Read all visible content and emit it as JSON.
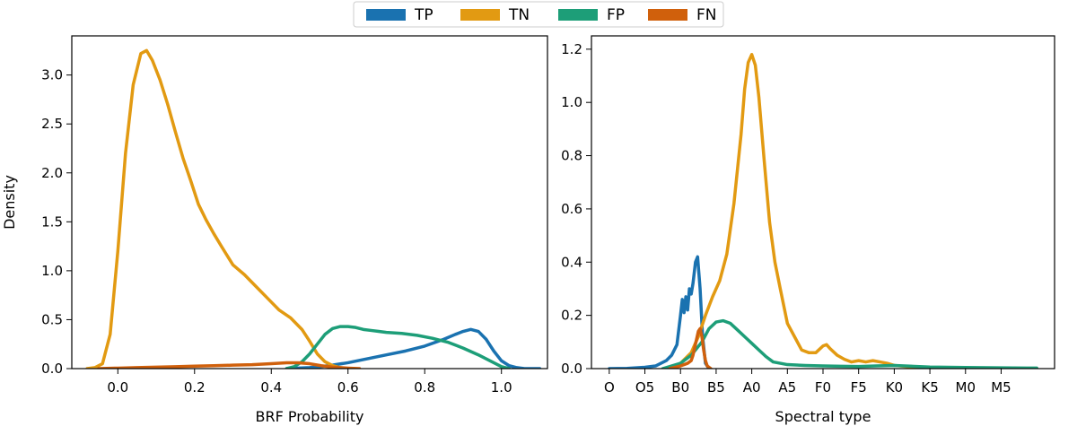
{
  "chart_data": {
    "legend": {
      "placement": "top-center",
      "entries": [
        {
          "name": "TP",
          "color": "#1a72b0"
        },
        {
          "name": "TN",
          "color": "#e29a12"
        },
        {
          "name": "FP",
          "color": "#1d9e78"
        },
        {
          "name": "FN",
          "color": "#d0600c"
        }
      ]
    },
    "panels": [
      {
        "type": "line",
        "title": "",
        "xlabel": "BRF Probability",
        "ylabel": "Density",
        "xlim": [
          -0.12,
          1.12
        ],
        "ylim": [
          0,
          3.4
        ],
        "xticks": [
          0.0,
          0.2,
          0.4,
          0.6,
          0.8,
          1.0
        ],
        "xtick_labels": [
          "0.0",
          "0.2",
          "0.4",
          "0.6",
          "0.8",
          "1.0"
        ],
        "yticks": [
          0.0,
          0.5,
          1.0,
          1.5,
          2.0,
          2.5,
          3.0
        ],
        "ytick_labels": [
          "0.0",
          "0.5",
          "1.0",
          "1.5",
          "2.0",
          "2.5",
          "3.0"
        ],
        "series": [
          {
            "name": "TP",
            "color": "#1a72b0",
            "x": [
              0.44,
              0.5,
              0.55,
              0.6,
              0.65,
              0.7,
              0.75,
              0.8,
              0.85,
              0.88,
              0.9,
              0.92,
              0.94,
              0.96,
              0.98,
              1.0,
              1.02,
              1.04,
              1.06,
              1.08,
              1.1
            ],
            "y": [
              0.0,
              0.01,
              0.03,
              0.06,
              0.1,
              0.14,
              0.18,
              0.23,
              0.3,
              0.35,
              0.38,
              0.4,
              0.38,
              0.3,
              0.18,
              0.08,
              0.03,
              0.01,
              0.0,
              0.0,
              0.0
            ]
          },
          {
            "name": "TN",
            "color": "#e29a12",
            "x": [
              -0.08,
              -0.06,
              -0.04,
              -0.02,
              0.0,
              0.02,
              0.04,
              0.06,
              0.075,
              0.09,
              0.11,
              0.13,
              0.15,
              0.17,
              0.19,
              0.21,
              0.23,
              0.25,
              0.27,
              0.3,
              0.33,
              0.36,
              0.39,
              0.42,
              0.45,
              0.48,
              0.5,
              0.52,
              0.54,
              0.56,
              0.58,
              0.6
            ],
            "y": [
              0.0,
              0.01,
              0.05,
              0.35,
              1.2,
              2.2,
              2.9,
              3.22,
              3.25,
              3.15,
              2.95,
              2.7,
              2.42,
              2.15,
              1.92,
              1.68,
              1.52,
              1.38,
              1.25,
              1.06,
              0.96,
              0.84,
              0.72,
              0.6,
              0.52,
              0.4,
              0.28,
              0.15,
              0.07,
              0.03,
              0.01,
              0.0
            ]
          },
          {
            "name": "FP",
            "color": "#1d9e78",
            "x": [
              0.44,
              0.46,
              0.48,
              0.5,
              0.52,
              0.54,
              0.56,
              0.58,
              0.6,
              0.62,
              0.64,
              0.66,
              0.68,
              0.7,
              0.74,
              0.78,
              0.82,
              0.86,
              0.9,
              0.94,
              0.98,
              1.0,
              1.02
            ],
            "y": [
              0.0,
              0.02,
              0.07,
              0.15,
              0.25,
              0.35,
              0.41,
              0.43,
              0.43,
              0.42,
              0.4,
              0.39,
              0.38,
              0.37,
              0.36,
              0.34,
              0.31,
              0.27,
              0.21,
              0.14,
              0.06,
              0.02,
              0.0
            ]
          },
          {
            "name": "FN",
            "color": "#d0600c",
            "x": [
              -0.05,
              0.0,
              0.05,
              0.1,
              0.15,
              0.2,
              0.25,
              0.3,
              0.35,
              0.4,
              0.44,
              0.47,
              0.5,
              0.53,
              0.56,
              0.6,
              0.63
            ],
            "y": [
              0.0,
              0.005,
              0.01,
              0.015,
              0.02,
              0.025,
              0.03,
              0.035,
              0.04,
              0.05,
              0.06,
              0.06,
              0.05,
              0.03,
              0.015,
              0.005,
              0.0
            ]
          }
        ]
      },
      {
        "type": "line",
        "title": "",
        "xlabel": "Spectral type",
        "ylabel": "",
        "xlim": [
          -0.5,
          12.5
        ],
        "ylim": [
          0,
          1.25
        ],
        "xticks": [
          0,
          1,
          2,
          3,
          4,
          5,
          6,
          7,
          8,
          9,
          10,
          11
        ],
        "xtick_labels": [
          "O",
          "O5",
          "B0",
          "B5",
          "A0",
          "A5",
          "F0",
          "F5",
          "K0",
          "K5",
          "M0",
          "M5"
        ],
        "yticks": [
          0.0,
          0.2,
          0.4,
          0.6,
          0.8,
          1.0,
          1.2
        ],
        "ytick_labels": [
          "0.0",
          "0.2",
          "0.4",
          "0.6",
          "0.8",
          "1.0",
          "1.2"
        ],
        "series": [
          {
            "name": "TP",
            "color": "#1a72b0",
            "x": [
              0.0,
              0.5,
              1.0,
              1.3,
              1.6,
              1.75,
              1.9,
              2.0,
              2.05,
              2.1,
              2.15,
              2.2,
              2.25,
              2.3,
              2.35,
              2.42,
              2.48,
              2.55,
              2.62,
              2.7,
              2.8
            ],
            "y": [
              0.0,
              0.001,
              0.005,
              0.01,
              0.03,
              0.05,
              0.09,
              0.2,
              0.26,
              0.21,
              0.27,
              0.22,
              0.3,
              0.28,
              0.32,
              0.4,
              0.42,
              0.3,
              0.12,
              0.02,
              0.0
            ]
          },
          {
            "name": "TN",
            "color": "#e29a12",
            "x": [
              1.7,
              2.0,
              2.3,
              2.5,
              2.7,
              2.9,
              3.1,
              3.3,
              3.5,
              3.7,
              3.8,
              3.9,
              4.0,
              4.1,
              4.2,
              4.35,
              4.5,
              4.65,
              4.8,
              5.0,
              5.2,
              5.4,
              5.6,
              5.8,
              6.0,
              6.1,
              6.2,
              6.4,
              6.6,
              6.8,
              7.0,
              7.2,
              7.4,
              7.6,
              7.8,
              8.0,
              8.5,
              9.0,
              9.5,
              10.0,
              11.0,
              12.0
            ],
            "y": [
              0.0,
              0.02,
              0.06,
              0.12,
              0.2,
              0.27,
              0.33,
              0.43,
              0.62,
              0.88,
              1.05,
              1.15,
              1.18,
              1.14,
              1.02,
              0.78,
              0.55,
              0.4,
              0.3,
              0.17,
              0.12,
              0.07,
              0.06,
              0.06,
              0.085,
              0.09,
              0.075,
              0.05,
              0.035,
              0.025,
              0.03,
              0.025,
              0.03,
              0.025,
              0.02,
              0.012,
              0.006,
              0.004,
              0.003,
              0.002,
              0.001,
              0.0
            ]
          },
          {
            "name": "FP",
            "color": "#1d9e78",
            "x": [
              1.5,
              2.0,
              2.3,
              2.6,
              2.8,
              3.0,
              3.2,
              3.4,
              3.6,
              3.8,
              4.0,
              4.2,
              4.4,
              4.6,
              5.0,
              5.5,
              6.0,
              6.5,
              7.0,
              7.5,
              8.0,
              9.0,
              10.0,
              11.0,
              12.0
            ],
            "y": [
              0.0,
              0.02,
              0.05,
              0.1,
              0.15,
              0.175,
              0.18,
              0.17,
              0.145,
              0.12,
              0.095,
              0.07,
              0.045,
              0.025,
              0.015,
              0.012,
              0.01,
              0.009,
              0.008,
              0.01,
              0.012,
              0.006,
              0.004,
              0.003,
              0.002
            ]
          },
          {
            "name": "FN",
            "color": "#d0600c",
            "x": [
              1.7,
              2.0,
              2.2,
              2.3,
              2.35,
              2.4,
              2.45,
              2.5,
              2.55,
              2.6,
              2.65,
              2.7,
              2.75,
              2.8,
              2.85
            ],
            "y": [
              0.0,
              0.01,
              0.02,
              0.03,
              0.05,
              0.08,
              0.11,
              0.14,
              0.15,
              0.12,
              0.07,
              0.03,
              0.01,
              0.005,
              0.0
            ]
          }
        ]
      }
    ]
  }
}
